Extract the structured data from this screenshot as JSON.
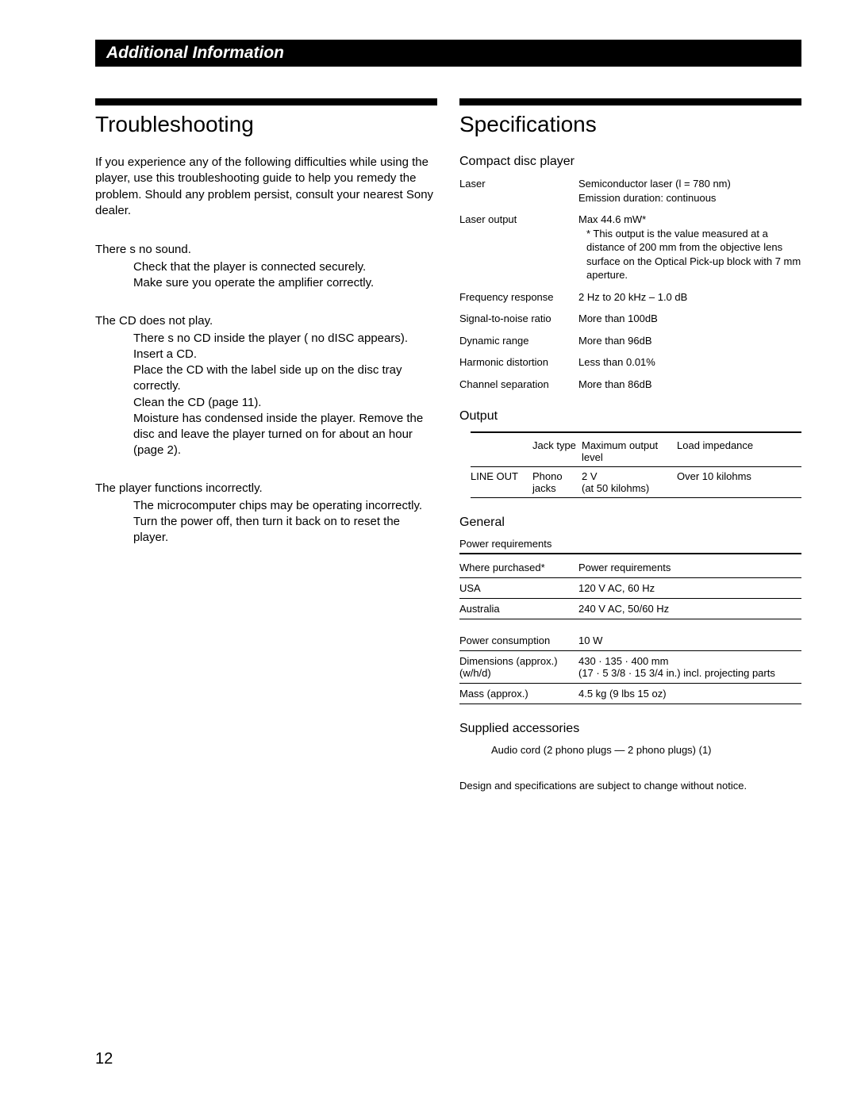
{
  "header": "Additional Information",
  "left": {
    "title": "Troubleshooting",
    "intro": "If you experience any of the following difficulties while using the player, use this troubleshooting guide to help you remedy the problem. Should any problem persist, consult your nearest Sony dealer.",
    "items": [
      {
        "problem": "There s no sound.",
        "remedies": [
          "Check that the player is connected securely.",
          "Make sure you operate the amplifier correctly."
        ]
      },
      {
        "problem": "The CD does not play.",
        "remedies": [
          "There s no CD inside the player ( no dISC appears). Insert a CD.",
          "Place the CD with the label side up on the disc tray correctly.",
          "Clean the CD (page 11).",
          "Moisture has condensed inside the player. Remove the disc and leave the player turned on for about an hour (page 2)."
        ]
      },
      {
        "problem": "The player functions incorrectly.",
        "remedies": [
          "The microcomputer chips may be operating incorrectly. Turn the power off, then turn it back on to reset the player."
        ]
      }
    ]
  },
  "right": {
    "title": "Specifications",
    "cd": {
      "heading": "Compact disc player",
      "rows": [
        {
          "label": "Laser",
          "value": "Semiconductor laser (l = 780 nm)\nEmission duration: continuous"
        },
        {
          "label": "Laser output",
          "value": "Max 44.6 mW*\n* This output is the value measured at a distance of 200 mm from the objective lens surface on the Optical Pick-up block with 7 mm aperture.",
          "indent": true
        },
        {
          "label": "Frequency response",
          "value": "2 Hz to 20 kHz – 1.0 dB"
        },
        {
          "label": "Signal-to-noise ratio",
          "value": "More than    100dB"
        },
        {
          "label": "Dynamic range",
          "value": "More than    96dB"
        },
        {
          "label": "Harmonic distortion",
          "value": "Less than     0.01%"
        },
        {
          "label": "Channel separation",
          "value": "More than   86dB"
        }
      ]
    },
    "output": {
      "heading": "Output",
      "headers": {
        "c1": "",
        "c2": "Jack type",
        "c3": "Maximum output level",
        "c4": "Load impedance"
      },
      "row": {
        "c1": "LINE OUT",
        "c2": "Phono jacks",
        "c3": "2 V\n(at 50 kilohms)",
        "c4": "Over 10 kilohms"
      }
    },
    "general": {
      "heading": "General",
      "power_title": "Power requirements",
      "power_header": {
        "l": "Where purchased*",
        "r": "Power requirements"
      },
      "power_rows": [
        {
          "l": "USA",
          "r": "120 V AC, 60 Hz"
        },
        {
          "l": "Australia",
          "r": "240 V AC, 50/60 Hz"
        }
      ],
      "other_rows": [
        {
          "l": "Power consumption",
          "r": "10 W"
        },
        {
          "l": "Dimensions (approx.) (w/h/d)",
          "r": "430 · 135 · 400 mm\n(17 · 5 3/8 · 15 3/4 in.) incl. projecting parts"
        },
        {
          "l": "Mass (approx.)",
          "r": "4.5 kg (9 lbs 15 oz)"
        }
      ]
    },
    "supplied": {
      "heading": "Supplied accessories",
      "line": "Audio cord (2 phono plugs — 2 phono plugs)  (1)"
    },
    "footnote": "Design and specifications are subject to change without notice."
  },
  "page_number": "12"
}
